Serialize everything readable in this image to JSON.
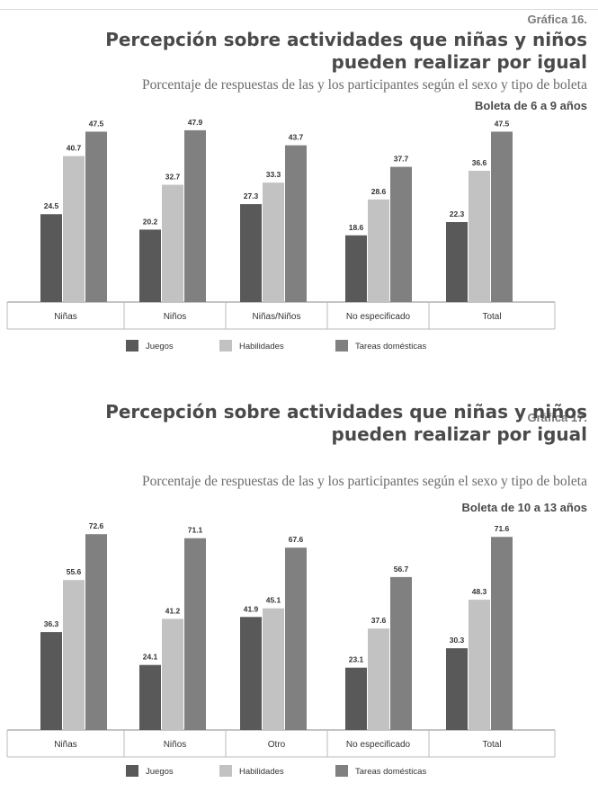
{
  "charts": [
    {
      "number": "Gráfica 16.",
      "title": "Percepción sobre actividades que niñas y niños pueden realizar por igual",
      "subtitle": "Porcentaje de respuestas de las y los participantes según el sexo y tipo de boleta",
      "boleta": "Boleta de 6 a 9 años"
    },
    {
      "number": "Gráfica 17.",
      "title": "Percepción sobre actividades que niñas y niños pueden realizar por igual",
      "subtitle": "Porcentaje de respuestas de las y los participantes según el sexo y tipo de boleta",
      "boleta": "Boleta de 10 a 13 años"
    }
  ],
  "colors": {
    "Juegos": "#595959",
    "Habilidades": "#c2c2c2",
    "Tareas domésticas": "#808080"
  },
  "chart_data": [
    {
      "type": "bar",
      "title": "Percepción sobre actividades que niñas y niños pueden realizar por igual",
      "categories": [
        "Niñas",
        "Niños",
        "Niñas/Niños",
        "No especificado",
        "Total"
      ],
      "series": [
        {
          "name": "Juegos",
          "values": [
            24.5,
            20.2,
            27.3,
            18.6,
            22.3
          ]
        },
        {
          "name": "Habilidades",
          "values": [
            40.7,
            32.7,
            33.3,
            28.6,
            36.6
          ]
        },
        {
          "name": "Tareas domésticas",
          "values": [
            47.5,
            47.9,
            43.7,
            37.7,
            47.5
          ]
        }
      ],
      "ylim": [
        0,
        50
      ],
      "legend": "bottom",
      "grid": false
    },
    {
      "type": "bar",
      "title": "Percepción sobre actividades que niñas y niños pueden realizar por igual",
      "categories": [
        "Niñas",
        "Niños",
        "Otro",
        "No especificado",
        "Total"
      ],
      "series": [
        {
          "name": "Juegos",
          "values": [
            36.3,
            24.1,
            41.9,
            23.1,
            30.3
          ]
        },
        {
          "name": "Habilidades",
          "values": [
            55.6,
            41.2,
            45.1,
            37.6,
            48.3
          ]
        },
        {
          "name": "Tareas domésticas",
          "values": [
            72.6,
            71.1,
            67.6,
            56.7,
            71.6
          ]
        }
      ],
      "ylim": [
        0,
        75
      ],
      "legend": "bottom",
      "grid": false
    }
  ]
}
